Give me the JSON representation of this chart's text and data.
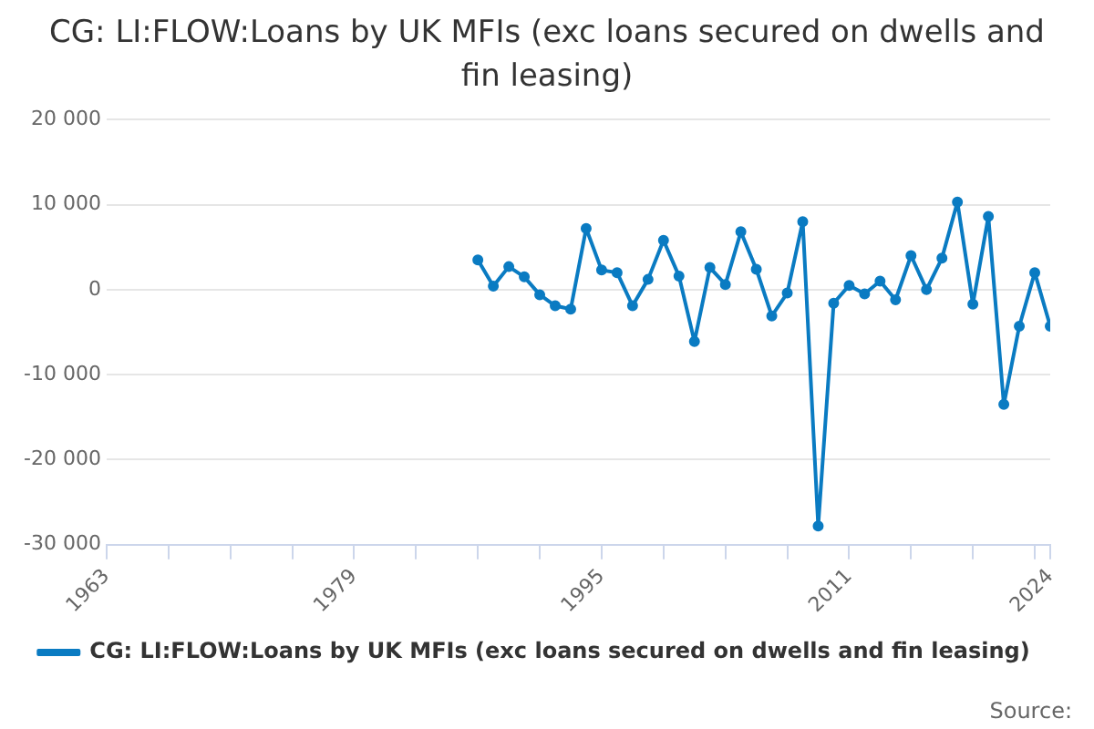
{
  "chart_data": {
    "type": "line",
    "title": "CG: LI:FLOW:Loans by UK MFIs (exc loans secured on dwells and fin leasing)",
    "x": [
      1987,
      1988,
      1989,
      1990,
      1991,
      1992,
      1993,
      1994,
      1995,
      1996,
      1997,
      1998,
      1999,
      2000,
      2001,
      2002,
      2003,
      2004,
      2005,
      2006,
      2007,
      2008,
      2009,
      2010,
      2011,
      2012,
      2013,
      2014,
      2015,
      2016,
      2017,
      2018,
      2019,
      2020,
      2021,
      2022,
      2023,
      2024
    ],
    "series": [
      {
        "name": "CG: LI:FLOW:Loans by UK MFIs (exc loans secured on dwells and fin leasing)",
        "color": "#0a7bc2",
        "values": [
          3500,
          400,
          2700,
          1500,
          -600,
          -1900,
          -2300,
          7200,
          2300,
          2000,
          -1900,
          1200,
          5800,
          1600,
          -6100,
          2600,
          600,
          6800,
          2400,
          -3100,
          -400,
          8000,
          -27800,
          -1600,
          500,
          -500,
          1000,
          -1200,
          4000,
          0,
          3700,
          10300,
          -1700,
          8600,
          -13500,
          -4300,
          2000,
          -4300
        ]
      }
    ],
    "xlim": [
      1963,
      2024
    ],
    "xticks": [
      1963,
      {
        "value": 1967,
        "label": null
      },
      {
        "value": 1971,
        "label": null
      },
      {
        "value": 1975,
        "label": null
      },
      1979,
      {
        "value": 1983,
        "label": null
      },
      {
        "value": 1987,
        "label": null
      },
      {
        "value": 1991,
        "label": null
      },
      1995,
      {
        "value": 1999,
        "label": null
      },
      {
        "value": 2003,
        "label": null
      },
      {
        "value": 2007,
        "label": null
      },
      2011,
      {
        "value": 2015,
        "label": null
      },
      {
        "value": 2019,
        "label": null
      },
      {
        "value": 2023,
        "label": null
      },
      2024
    ],
    "ylim": [
      -30000,
      20000
    ],
    "yticks": [
      {
        "value": -30000,
        "label": "-30 000"
      },
      {
        "value": -20000,
        "label": "-20 000"
      },
      {
        "value": -10000,
        "label": "-10 000"
      },
      0,
      {
        "value": 10000,
        "label": "10 000"
      },
      {
        "value": 20000,
        "label": "20 000"
      }
    ],
    "grid": "y",
    "legend": "bottom",
    "marker": "circle",
    "line_style": "solid",
    "annotations": [
      "Source:"
    ]
  }
}
